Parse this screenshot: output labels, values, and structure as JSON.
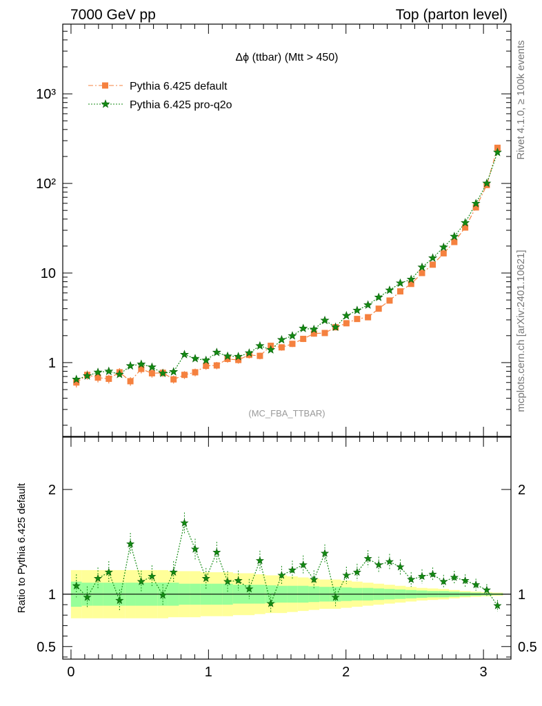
{
  "header": {
    "left": "7000 GeV pp",
    "right": "Top (parton level)"
  },
  "side_labels": {
    "upper": "Rivet 4.1.0, ≥ 100k events",
    "lower": "mcplots.cern.ch [arXiv:2401.10621]"
  },
  "colors": {
    "default": "#f5813f",
    "proq2o": "#138a13",
    "band_inner": "#99ff99",
    "band_outer": "#ffff99"
  },
  "chart_data": [
    {
      "type": "line",
      "panel": "main",
      "title": "Δϕ (ttbar) (Mtt > 450)",
      "watermark": "(MC_FBA_TTBAR)",
      "yscale": "log",
      "xlim": [
        -0.06,
        3.2
      ],
      "ylim": [
        0.15,
        6000
      ],
      "yticks": [
        {
          "value": 1,
          "label": "1"
        },
        {
          "value": 10,
          "label": "10"
        },
        {
          "value": 100,
          "label": "10²"
        },
        {
          "value": 1000,
          "label": "10³"
        }
      ],
      "legend_position": "top-left",
      "x": [
        0.039,
        0.118,
        0.196,
        0.275,
        0.353,
        0.432,
        0.511,
        0.589,
        0.668,
        0.746,
        0.825,
        0.903,
        0.982,
        1.06,
        1.139,
        1.217,
        1.296,
        1.374,
        1.453,
        1.532,
        1.61,
        1.689,
        1.767,
        1.846,
        1.924,
        2.003,
        2.081,
        2.16,
        2.238,
        2.317,
        2.395,
        2.474,
        2.553,
        2.631,
        2.71,
        2.788,
        2.867,
        2.945,
        3.024,
        3.102
      ],
      "series": [
        {
          "name": "Pythia 6.425 default",
          "values": [
            0.6,
            0.73,
            0.68,
            0.66,
            0.78,
            0.62,
            0.85,
            0.76,
            0.77,
            0.65,
            0.73,
            0.78,
            0.92,
            0.93,
            1.1,
            1.07,
            1.22,
            1.19,
            1.54,
            1.48,
            1.62,
            1.84,
            2.11,
            2.14,
            2.48,
            2.75,
            3.07,
            3.21,
            4.0,
            4.93,
            6.24,
            7.56,
            10.0,
            12.4,
            16.6,
            22.2,
            32.2,
            54.0,
            96.0,
            250.0
          ]
        },
        {
          "name": "Pythia 6.425 pro-q2o",
          "values": [
            0.65,
            0.71,
            0.78,
            0.8,
            0.74,
            0.92,
            0.96,
            0.89,
            0.76,
            0.79,
            1.23,
            1.11,
            1.06,
            1.3,
            1.18,
            1.17,
            1.28,
            1.54,
            1.39,
            1.8,
            1.99,
            2.41,
            2.35,
            2.96,
            2.49,
            3.34,
            3.83,
            4.4,
            5.36,
            6.43,
            7.71,
            8.5,
            11.6,
            14.7,
            19.4,
            25.6,
            36.4,
            59.7,
            100.3,
            222.5
          ]
        }
      ]
    },
    {
      "type": "line",
      "panel": "ratio",
      "ylabel": "Ratio to Pythia 6.425 default",
      "xlim": [
        -0.06,
        3.2
      ],
      "ylim": [
        0.38,
        2.5
      ],
      "yticks": [
        {
          "value": 0.5,
          "label": "0.5"
        },
        {
          "value": 1,
          "label": "1"
        },
        {
          "value": 2,
          "label": "2"
        }
      ],
      "xticks": [
        {
          "value": 0,
          "label": "0"
        },
        {
          "value": 1,
          "label": "1"
        },
        {
          "value": 2,
          "label": "2"
        },
        {
          "value": 3,
          "label": "3"
        }
      ],
      "series": [
        {
          "name": "Pythia 6.425 pro-q2o / default",
          "values": [
            1.08,
            0.97,
            1.15,
            1.21,
            0.94,
            1.48,
            1.12,
            1.17,
            0.99,
            1.21,
            1.68,
            1.43,
            1.15,
            1.4,
            1.12,
            1.13,
            1.05,
            1.32,
            0.91,
            1.18,
            1.23,
            1.28,
            1.14,
            1.39,
            0.97,
            1.18,
            1.21,
            1.34,
            1.28,
            1.31,
            1.26,
            1.14,
            1.17,
            1.19,
            1.12,
            1.16,
            1.13,
            1.09,
            1.04,
            0.89
          ]
        }
      ],
      "band_inner": [
        0.12,
        0.11,
        0.11,
        0.11,
        0.11,
        0.11,
        0.11,
        0.11,
        0.11,
        0.11,
        0.1,
        0.1,
        0.1,
        0.1,
        0.1,
        0.09,
        0.09,
        0.09,
        0.085,
        0.08,
        0.08,
        0.08,
        0.075,
        0.07,
        0.07,
        0.065,
        0.06,
        0.06,
        0.055,
        0.05,
        0.045,
        0.04,
        0.035,
        0.03,
        0.03,
        0.025,
        0.02,
        0.015,
        0.012,
        0.008
      ],
      "band_outer": [
        0.23,
        0.23,
        0.23,
        0.23,
        0.23,
        0.23,
        0.23,
        0.23,
        0.23,
        0.22,
        0.22,
        0.22,
        0.21,
        0.21,
        0.21,
        0.2,
        0.2,
        0.19,
        0.18,
        0.18,
        0.17,
        0.16,
        0.15,
        0.14,
        0.14,
        0.13,
        0.12,
        0.11,
        0.1,
        0.09,
        0.08,
        0.07,
        0.06,
        0.055,
        0.05,
        0.04,
        0.03,
        0.025,
        0.02,
        0.015
      ]
    }
  ]
}
